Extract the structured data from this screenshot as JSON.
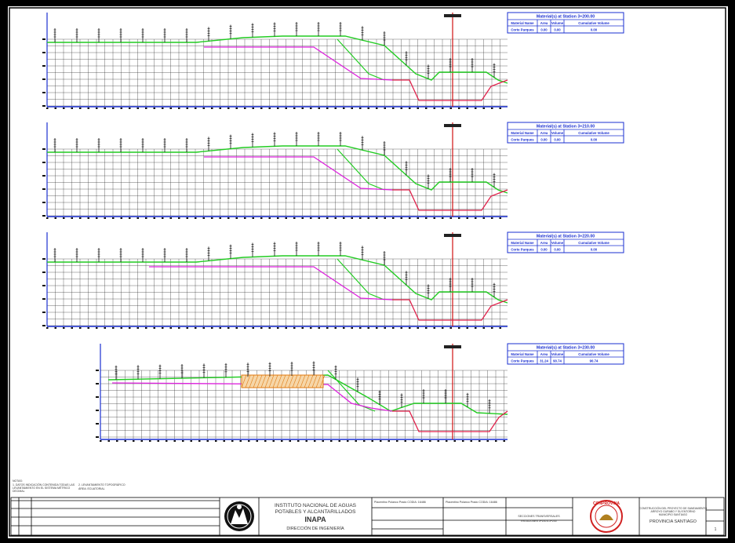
{
  "sections": [
    {
      "station": "Material(s) at Station 3+200.00",
      "area": "0.00",
      "volume": "0.00",
      "cumulative": "0.00"
    },
    {
      "station": "Material(s) at Station 3+210.00",
      "area": "0.00",
      "volume": "0.00",
      "cumulative": "0.00"
    },
    {
      "station": "Material(s) at Station 3+220.00",
      "area": "0.00",
      "volume": "0.00",
      "cumulative": "0.00"
    },
    {
      "station": "Material(s) at Station 3+230.00",
      "area": "31.24",
      "volume": "90.74",
      "cumulative": "90.74"
    }
  ],
  "table": {
    "col_material": "Material Name",
    "col_area": "Area",
    "col_volume": "Volume",
    "col_cumulative": "Cumulative Volume",
    "material": "Corte Parques"
  },
  "colors": {
    "grid": "#2a2a2a",
    "axis": "#1a2fd0",
    "terrain": "#22cc22",
    "design": "#dd22dd",
    "bottom": "#e0204a",
    "centerline": "#d01010",
    "cut_hatch": "#e07a10"
  },
  "notes": {
    "notas": "NOTAS:",
    "line1": "1. DATOS INDICACIÓN CONTENIDA TODAS LAS",
    "line2": "LEVANTAMIENTO EN EL SISTEMA MÉTRICO",
    "line3": "DECIMAL",
    "ref": "2. LEVANTAMIENTO TOPOGRÁFICO",
    "ref2": "ÁREA: ECUATORIAL"
  },
  "title_block": {
    "inst1": "INSTITUTO NACIONAL DE AGUAS",
    "inst2": "POTABLES Y ALCANTARILLADOS",
    "inapa": "INAPA",
    "dir": "DIRECCIÓN DE INGENIERÍA",
    "designer1": "Placentino Polanco Prado CODIA: 16486",
    "designer2": "Placentino Polanco Prado CODIA: 16486",
    "drawing1": "SECCIONES TRANSVERSALES",
    "drawing2": "ESTACIONES 3+200 A 3+230",
    "stamp": "CONPROVINA",
    "project1": "CONSTRUCCIÓN DEL PROYECTO DE SANEAMIENTO",
    "project2": "ARROYO GURABO Y SU ENTORNO",
    "project3": "MUNICIPIO SANTIAGO",
    "province": "PROVINCIA SANTIAGO",
    "sheet": "1"
  }
}
